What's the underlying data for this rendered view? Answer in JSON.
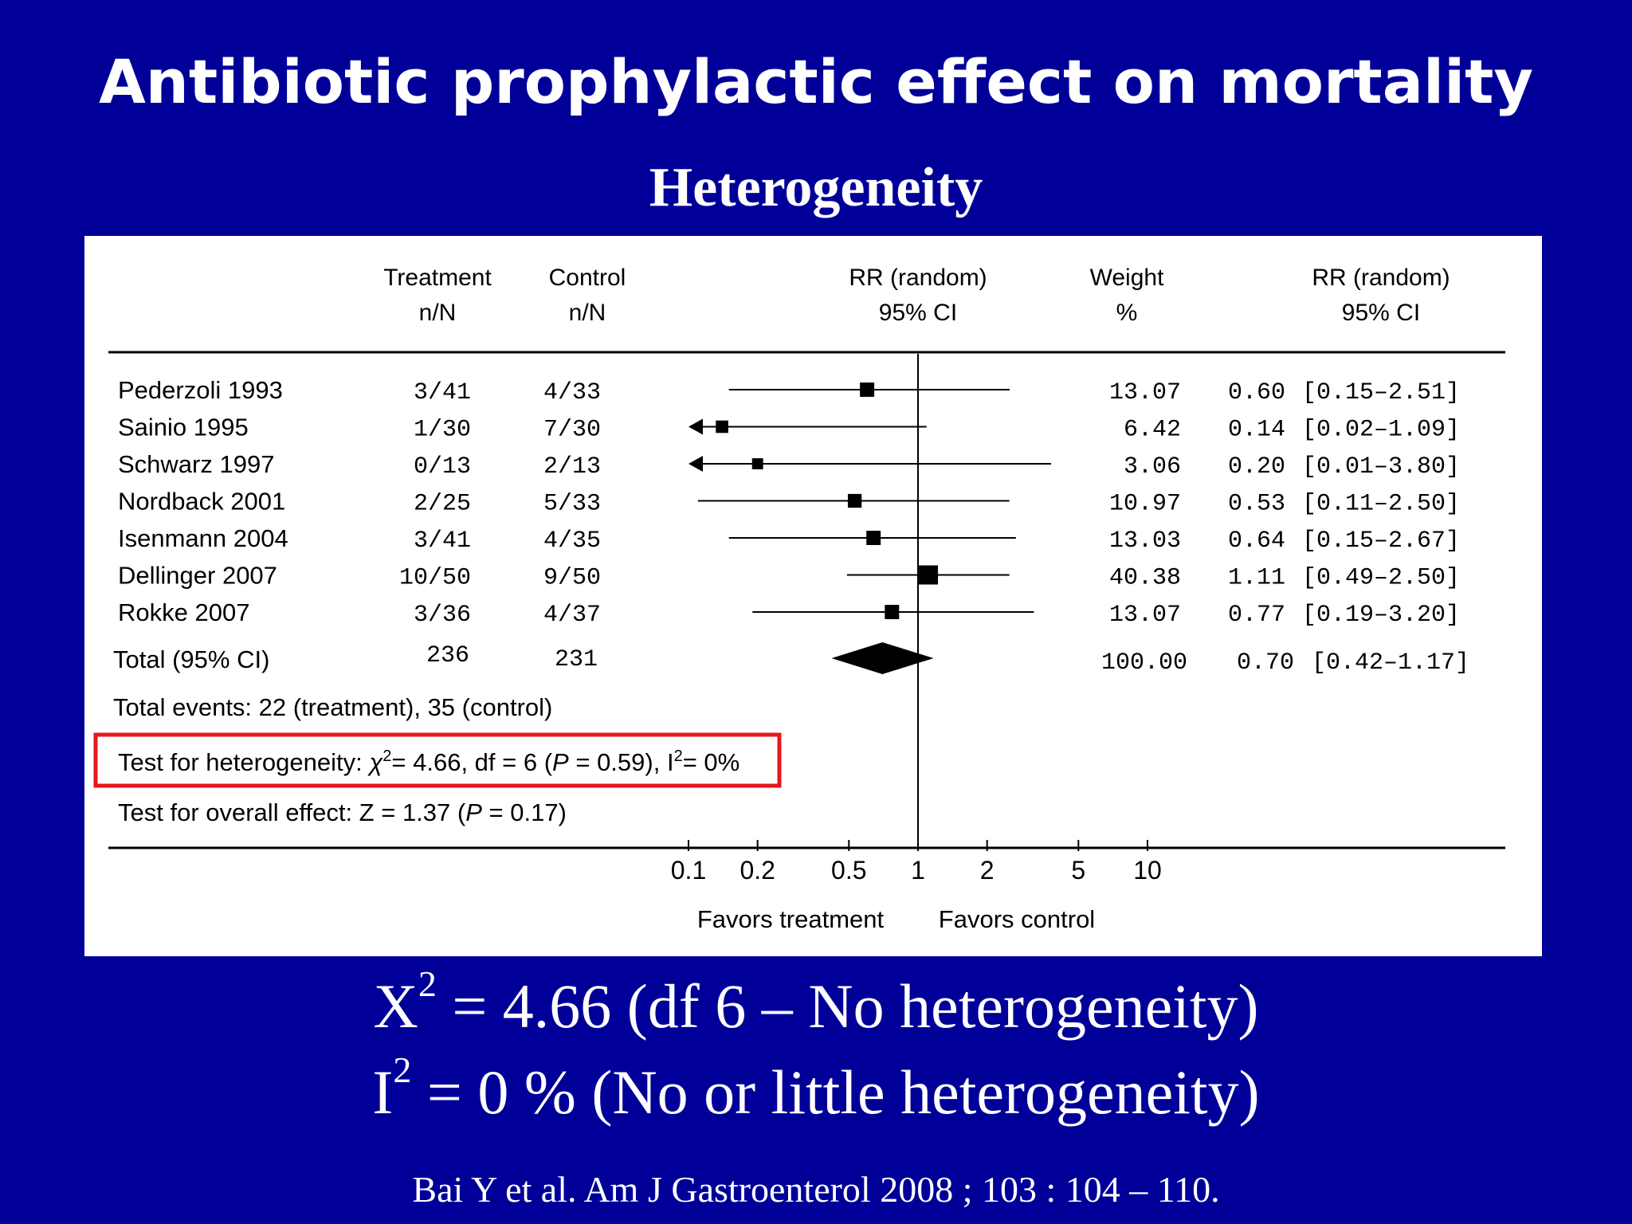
{
  "slide": {
    "title": "Antibiotic prophylactic effect on mortality",
    "subtitle": "Heterogeneity",
    "stat_line1": {
      "symbol": "X",
      "sup": "2",
      "rest": " = 4.66 (df 6 – No heterogeneity)"
    },
    "stat_line2": {
      "symbol": "I",
      "sup": "2",
      "rest": " = 0 % (No or little heterogeneity)"
    },
    "citation": "Bai Y et al. Am J Gastroenterol 2008 ; 103 : 104 – 110.",
    "colors": {
      "background": "#000099",
      "panel": "#ffffff",
      "highlight": "#e8161b",
      "ink": "#000000"
    }
  },
  "chart_data": {
    "type": "forest",
    "headers": {
      "treatment": [
        "Treatment",
        "n/N"
      ],
      "control": [
        "Control",
        "n/N"
      ],
      "rr_plot": [
        "RR (random)",
        "95% CI"
      ],
      "weight": [
        "Weight",
        "%"
      ],
      "rr_text": [
        "RR (random)",
        "95% CI"
      ]
    },
    "x_scale": "log",
    "xlim": [
      0.1,
      10
    ],
    "ticks": [
      "0.1",
      "0.2",
      "0.5",
      "1",
      "2",
      "5",
      "10"
    ],
    "null_value": 1,
    "favors_left": "Favors treatment",
    "favors_right": "Favors control",
    "studies": [
      {
        "name": "Pederzoli 1993",
        "treatment": "3/41",
        "control": "4/33",
        "rr": 0.6,
        "lo": 0.15,
        "hi": 2.51,
        "weight": "13.07",
        "rr_text": "0.60",
        "ci_text": "[0.15–2.51]"
      },
      {
        "name": "Sainio 1995",
        "treatment": "1/30",
        "control": "7/30",
        "rr": 0.14,
        "lo": 0.02,
        "hi": 1.09,
        "weight": "6.42",
        "rr_text": "0.14",
        "ci_text": "[0.02–1.09]"
      },
      {
        "name": "Schwarz 1997",
        "treatment": "0/13",
        "control": "2/13",
        "rr": 0.2,
        "lo": 0.01,
        "hi": 3.8,
        "weight": "3.06",
        "rr_text": "0.20",
        "ci_text": "[0.01–3.80]"
      },
      {
        "name": "Nordback 2001",
        "treatment": "2/25",
        "control": "5/33",
        "rr": 0.53,
        "lo": 0.11,
        "hi": 2.5,
        "weight": "10.97",
        "rr_text": "0.53",
        "ci_text": "[0.11–2.50]"
      },
      {
        "name": "Isenmann 2004",
        "treatment": "3/41",
        "control": "4/35",
        "rr": 0.64,
        "lo": 0.15,
        "hi": 2.67,
        "weight": "13.03",
        "rr_text": "0.64",
        "ci_text": "[0.15–2.67]"
      },
      {
        "name": "Dellinger 2007",
        "treatment": "10/50",
        "control": "9/50",
        "rr": 1.11,
        "lo": 0.49,
        "hi": 2.5,
        "weight": "40.38",
        "rr_text": "1.11",
        "ci_text": "[0.49–2.50]"
      },
      {
        "name": "Rokke 2007",
        "treatment": "3/36",
        "control": "4/37",
        "rr": 0.77,
        "lo": 0.19,
        "hi": 3.2,
        "weight": "13.07",
        "rr_text": "0.77",
        "ci_text": "[0.19–3.20]"
      }
    ],
    "total": {
      "name": "Total (95% CI)",
      "treatment": "236",
      "control": "231",
      "rr": 0.7,
      "lo": 0.42,
      "hi": 1.17,
      "weight": "100.00",
      "rr_text": "0.70",
      "ci_text": "[0.42–1.17]"
    },
    "footer": {
      "events": "Total events: 22 (treatment), 35 (control)",
      "heterogeneity": {
        "prefix": "Test for heterogeneity: ",
        "chi": "χ",
        "chi_sup": "2",
        "mid": "= 4.66, df = 6 (",
        "p": "P",
        "p_rest": " = 0.59), I",
        "i_sup": "2",
        "end": "= 0%"
      },
      "overall": {
        "prefix": "Test for overall effect: Z = 1.37 (",
        "p": "P",
        "rest": " = 0.17)"
      }
    }
  }
}
